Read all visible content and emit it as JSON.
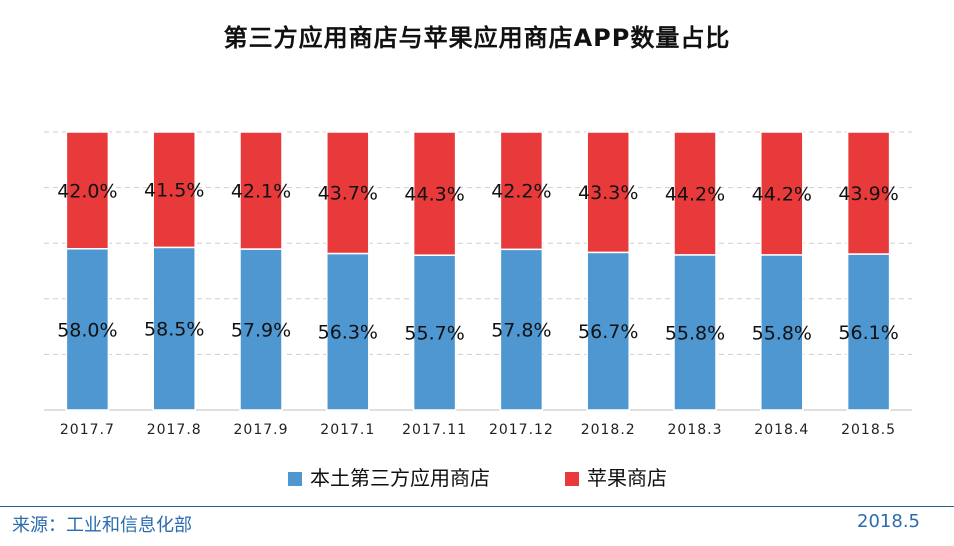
{
  "chart_data": {
    "type": "bar",
    "stacked": true,
    "title": "第三方应用商店与苹果应用商店APP数量占比",
    "categories": [
      "2017.7",
      "2017.8",
      "2017.9",
      "2017.1",
      "2017.11",
      "2017.12",
      "2018.2",
      "2018.3",
      "2018.4",
      "2018.5"
    ],
    "series": [
      {
        "name": "本土第三方应用商店",
        "color": "#4f97d1",
        "values": [
          58.0,
          58.5,
          57.9,
          56.3,
          55.7,
          57.8,
          56.7,
          55.8,
          55.8,
          56.1
        ],
        "labels": [
          "58.0%",
          "58.5%",
          "57.9%",
          "56.3%",
          "55.7%",
          "57.8%",
          "56.7%",
          "55.8%",
          "55.8%",
          "56.1%"
        ]
      },
      {
        "name": "苹果商店",
        "color": "#e83a3a",
        "values": [
          42.0,
          41.5,
          42.1,
          43.7,
          44.3,
          42.2,
          43.3,
          44.2,
          44.2,
          43.9
        ],
        "labels": [
          "42.0%",
          "41.5%",
          "42.1%",
          "43.7%",
          "44.3%",
          "42.2%",
          "43.3%",
          "44.2%",
          "44.2%",
          "43.9%"
        ]
      }
    ],
    "ylim": [
      0,
      100
    ],
    "grid": true,
    "legend": "bottom-center"
  },
  "footer": {
    "source": "来源：工业和信息化部",
    "date": "2018.5"
  }
}
